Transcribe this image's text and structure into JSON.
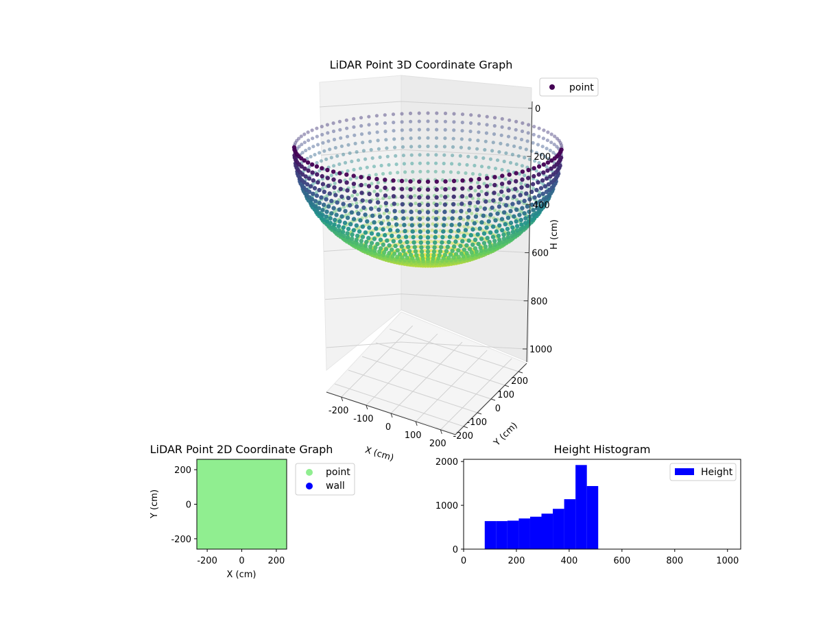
{
  "chart_data": [
    {
      "type": "scatter",
      "title": "LiDAR Point 3D Coordinate Graph",
      "xlabel": "X (cm)",
      "ylabel": "Y (cm)",
      "zlabel": "H (cm)",
      "x_ticks": [
        -200,
        -100,
        0,
        100,
        200
      ],
      "y_ticks": [
        -200,
        -100,
        0,
        100,
        200
      ],
      "z_ticks": [
        0,
        200,
        400,
        600,
        800,
        1000
      ],
      "xlim": [
        -260,
        260
      ],
      "ylim": [
        -260,
        260
      ],
      "zlim": [
        1050,
        0
      ],
      "z_inverted": true,
      "colormap": "viridis",
      "legend": [
        {
          "label": "point",
          "color": "#440154"
        }
      ],
      "legend_position": "top-right",
      "grid": true,
      "surface": {
        "shape": "hemispherical bowl of points, ring radius 250 at H 0 down to about 500 at centre",
        "radius": 250,
        "rim_height": 0,
        "bottom_height": 500
      }
    },
    {
      "type": "scatter",
      "title": "LiDAR Point 2D Coordinate Graph",
      "xlabel": "X (cm)",
      "ylabel": "Y (cm)",
      "x_ticks": [
        -200,
        0,
        200
      ],
      "y_ticks": [
        -200,
        0,
        200
      ],
      "xlim": [
        -260,
        260
      ],
      "ylim": [
        -260,
        260
      ],
      "fill_color": "#90ee90",
      "legend": [
        {
          "label": "point",
          "color": "#90ee90"
        },
        {
          "label": "wall",
          "color": "#0000ff"
        }
      ],
      "legend_position": "outside-right"
    },
    {
      "type": "bar",
      "title": "Height Histogram",
      "x_ticks": [
        0,
        200,
        400,
        600,
        800,
        1000
      ],
      "y_ticks": [
        0,
        1000,
        2000
      ],
      "xlim": [
        0,
        1050
      ],
      "ylim": [
        0,
        2050
      ],
      "bin_edges": [
        80,
        123,
        166,
        209,
        252,
        295,
        338,
        381,
        424,
        467,
        510
      ],
      "values": [
        640,
        640,
        650,
        700,
        740,
        810,
        920,
        1140,
        1920,
        1440
      ],
      "color": "#0000ff",
      "legend": [
        {
          "label": "Height",
          "color": "#0000ff"
        }
      ],
      "legend_position": "top-right"
    }
  ]
}
